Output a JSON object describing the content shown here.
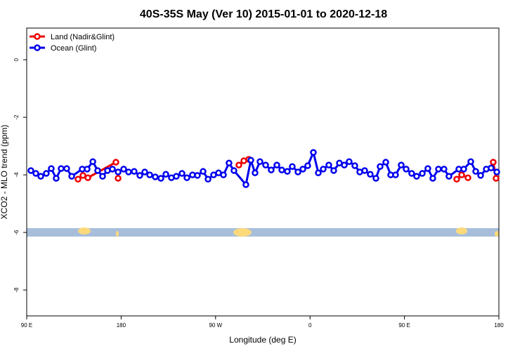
{
  "chart_data": {
    "type": "line",
    "title": "40S-35S May (Ver 10)   2015-01-01 to 2020-12-18",
    "x_label": "Longitude (deg E)",
    "y_label": "XCO2 - MLO trend (ppm)",
    "xlim": [
      90,
      540
    ],
    "ylim": [
      -8.9,
      1.1
    ],
    "xticks": [
      {
        "value": 90,
        "label": "90 E"
      },
      180,
      {
        "value": 270,
        "label": "90 W"
      },
      {
        "value": 360,
        "label": "0"
      },
      {
        "value": 450,
        "label": "90 E"
      },
      {
        "value": 540,
        "label": "180"
      }
    ],
    "yticks": [
      0,
      -2,
      -4,
      -6,
      -8
    ],
    "legend": "top-left",
    "series": [
      {
        "name": "Land (Nadir&Glint)",
        "color": "#ee0000",
        "x": [
          138.9,
          143.6,
          148.3,
          175.0,
          null,
          177.1,
          null,
          292.2,
          296.9,
          301.6,
          null,
          499.8,
          504.5,
          510.5,
          null,
          534.6,
          537.3
        ],
        "values": [
          -4.15,
          -4.02,
          -4.1,
          -3.56,
          null,
          -4.12,
          null,
          -3.66,
          -3.51,
          -3.46,
          null,
          -4.15,
          -4.0,
          -4.1,
          null,
          -3.56,
          -4.12
        ]
      },
      {
        "name": "Ocean (Glint)",
        "color": "#0000ee",
        "x": [
          94.0,
          98.7,
          103.4,
          108.7,
          113.4,
          118.1,
          122.8,
          128.1,
          132.9,
          142.9,
          147.6,
          153.0,
          157.6,
          162.3,
          167.0,
          171.7,
          177.1,
          182.4,
          187.1,
          192.4,
          197.8,
          202.5,
          207.2,
          212.5,
          217.9,
          222.6,
          227.9,
          232.6,
          238.0,
          242.7,
          248.0,
          252.7,
          258.1,
          262.8,
          268.1,
          272.8,
          277.5,
          282.8,
          287.5,
          298.9,
          303.6,
          307.6,
          312.3,
          317.7,
          323.0,
          328.4,
          333.1,
          338.4,
          343.1,
          348.5,
          353.2,
          357.8,
          363.2,
          367.9,
          372.6,
          377.9,
          382.6,
          388.0,
          392.7,
          397.3,
          402.7,
          407.4,
          412.1,
          417.4,
          422.8,
          426.8,
          432.2,
          436.9,
          441.5,
          446.9,
          451.6,
          456.9,
          461.6,
          467.0,
          472.3,
          477.0,
          482.4,
          487.7,
          492.4,
          501.8,
          506.5,
          513.2,
          517.9,
          522.6,
          528.0,
          532.6,
          538.0
        ],
        "values": [
          -3.85,
          -3.95,
          -4.05,
          -3.95,
          -3.78,
          -4.12,
          -3.78,
          -3.78,
          -4.05,
          -3.8,
          -3.8,
          -3.54,
          -3.85,
          -4.05,
          -3.85,
          -3.8,
          -3.9,
          -3.8,
          -3.9,
          -3.88,
          -4.02,
          -3.9,
          -4.0,
          -4.07,
          -4.12,
          -3.98,
          -4.1,
          -4.05,
          -3.95,
          -4.1,
          -4.0,
          -4.02,
          -3.88,
          -4.15,
          -4.0,
          -3.93,
          -4.0,
          -3.59,
          -3.85,
          -4.34,
          -3.49,
          -3.93,
          -3.54,
          -3.66,
          -3.83,
          -3.66,
          -3.83,
          -3.88,
          -3.71,
          -3.9,
          -3.8,
          -3.68,
          -3.22,
          -3.93,
          -3.8,
          -3.66,
          -3.85,
          -3.59,
          -3.66,
          -3.54,
          -3.68,
          -3.9,
          -3.85,
          -3.98,
          -4.12,
          -3.71,
          -3.56,
          -4.0,
          -4.0,
          -3.66,
          -3.8,
          -3.95,
          -4.05,
          -3.95,
          -3.78,
          -4.12,
          -3.8,
          -3.8,
          -4.05,
          -3.8,
          -3.8,
          -3.54,
          -3.88,
          -4.02,
          -3.8,
          -3.76,
          -3.9
        ]
      }
    ]
  }
}
